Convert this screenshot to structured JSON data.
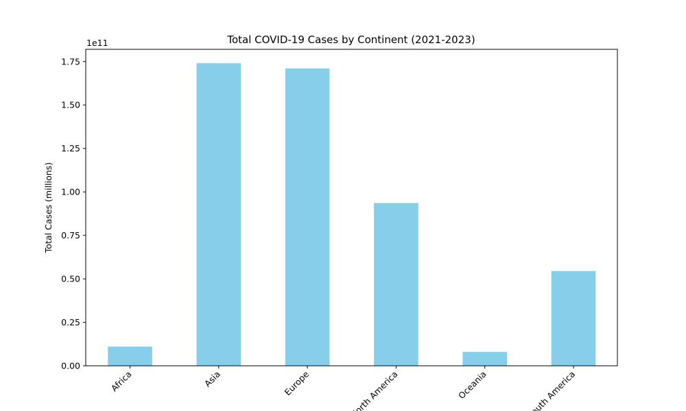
{
  "chart_data": {
    "type": "bar",
    "title": "Total COVID-19 Cases by Continent (2021-2023)",
    "xlabel": "",
    "ylabel": "Total Cases (millions)",
    "offset_text": "1e11",
    "categories": [
      "Africa",
      "Asia",
      "Europe",
      "North America",
      "Oceania",
      "South America"
    ],
    "values": [
      11000000000,
      174000000000,
      171000000000,
      93600000000,
      8000000000,
      54500000000
    ],
    "ylim": [
      0,
      182000000000
    ],
    "yticks": [
      {
        "value": 0,
        "label": "0.00"
      },
      {
        "value": 25000000000,
        "label": "0.25"
      },
      {
        "value": 50000000000,
        "label": "0.50"
      },
      {
        "value": 75000000000,
        "label": "0.75"
      },
      {
        "value": 100000000000,
        "label": "1.00"
      },
      {
        "value": 125000000000,
        "label": "1.25"
      },
      {
        "value": 150000000000,
        "label": "1.50"
      },
      {
        "value": 175000000000,
        "label": "1.75"
      }
    ],
    "bar_color": "#87ceeb",
    "grid": false,
    "legend": "none"
  }
}
